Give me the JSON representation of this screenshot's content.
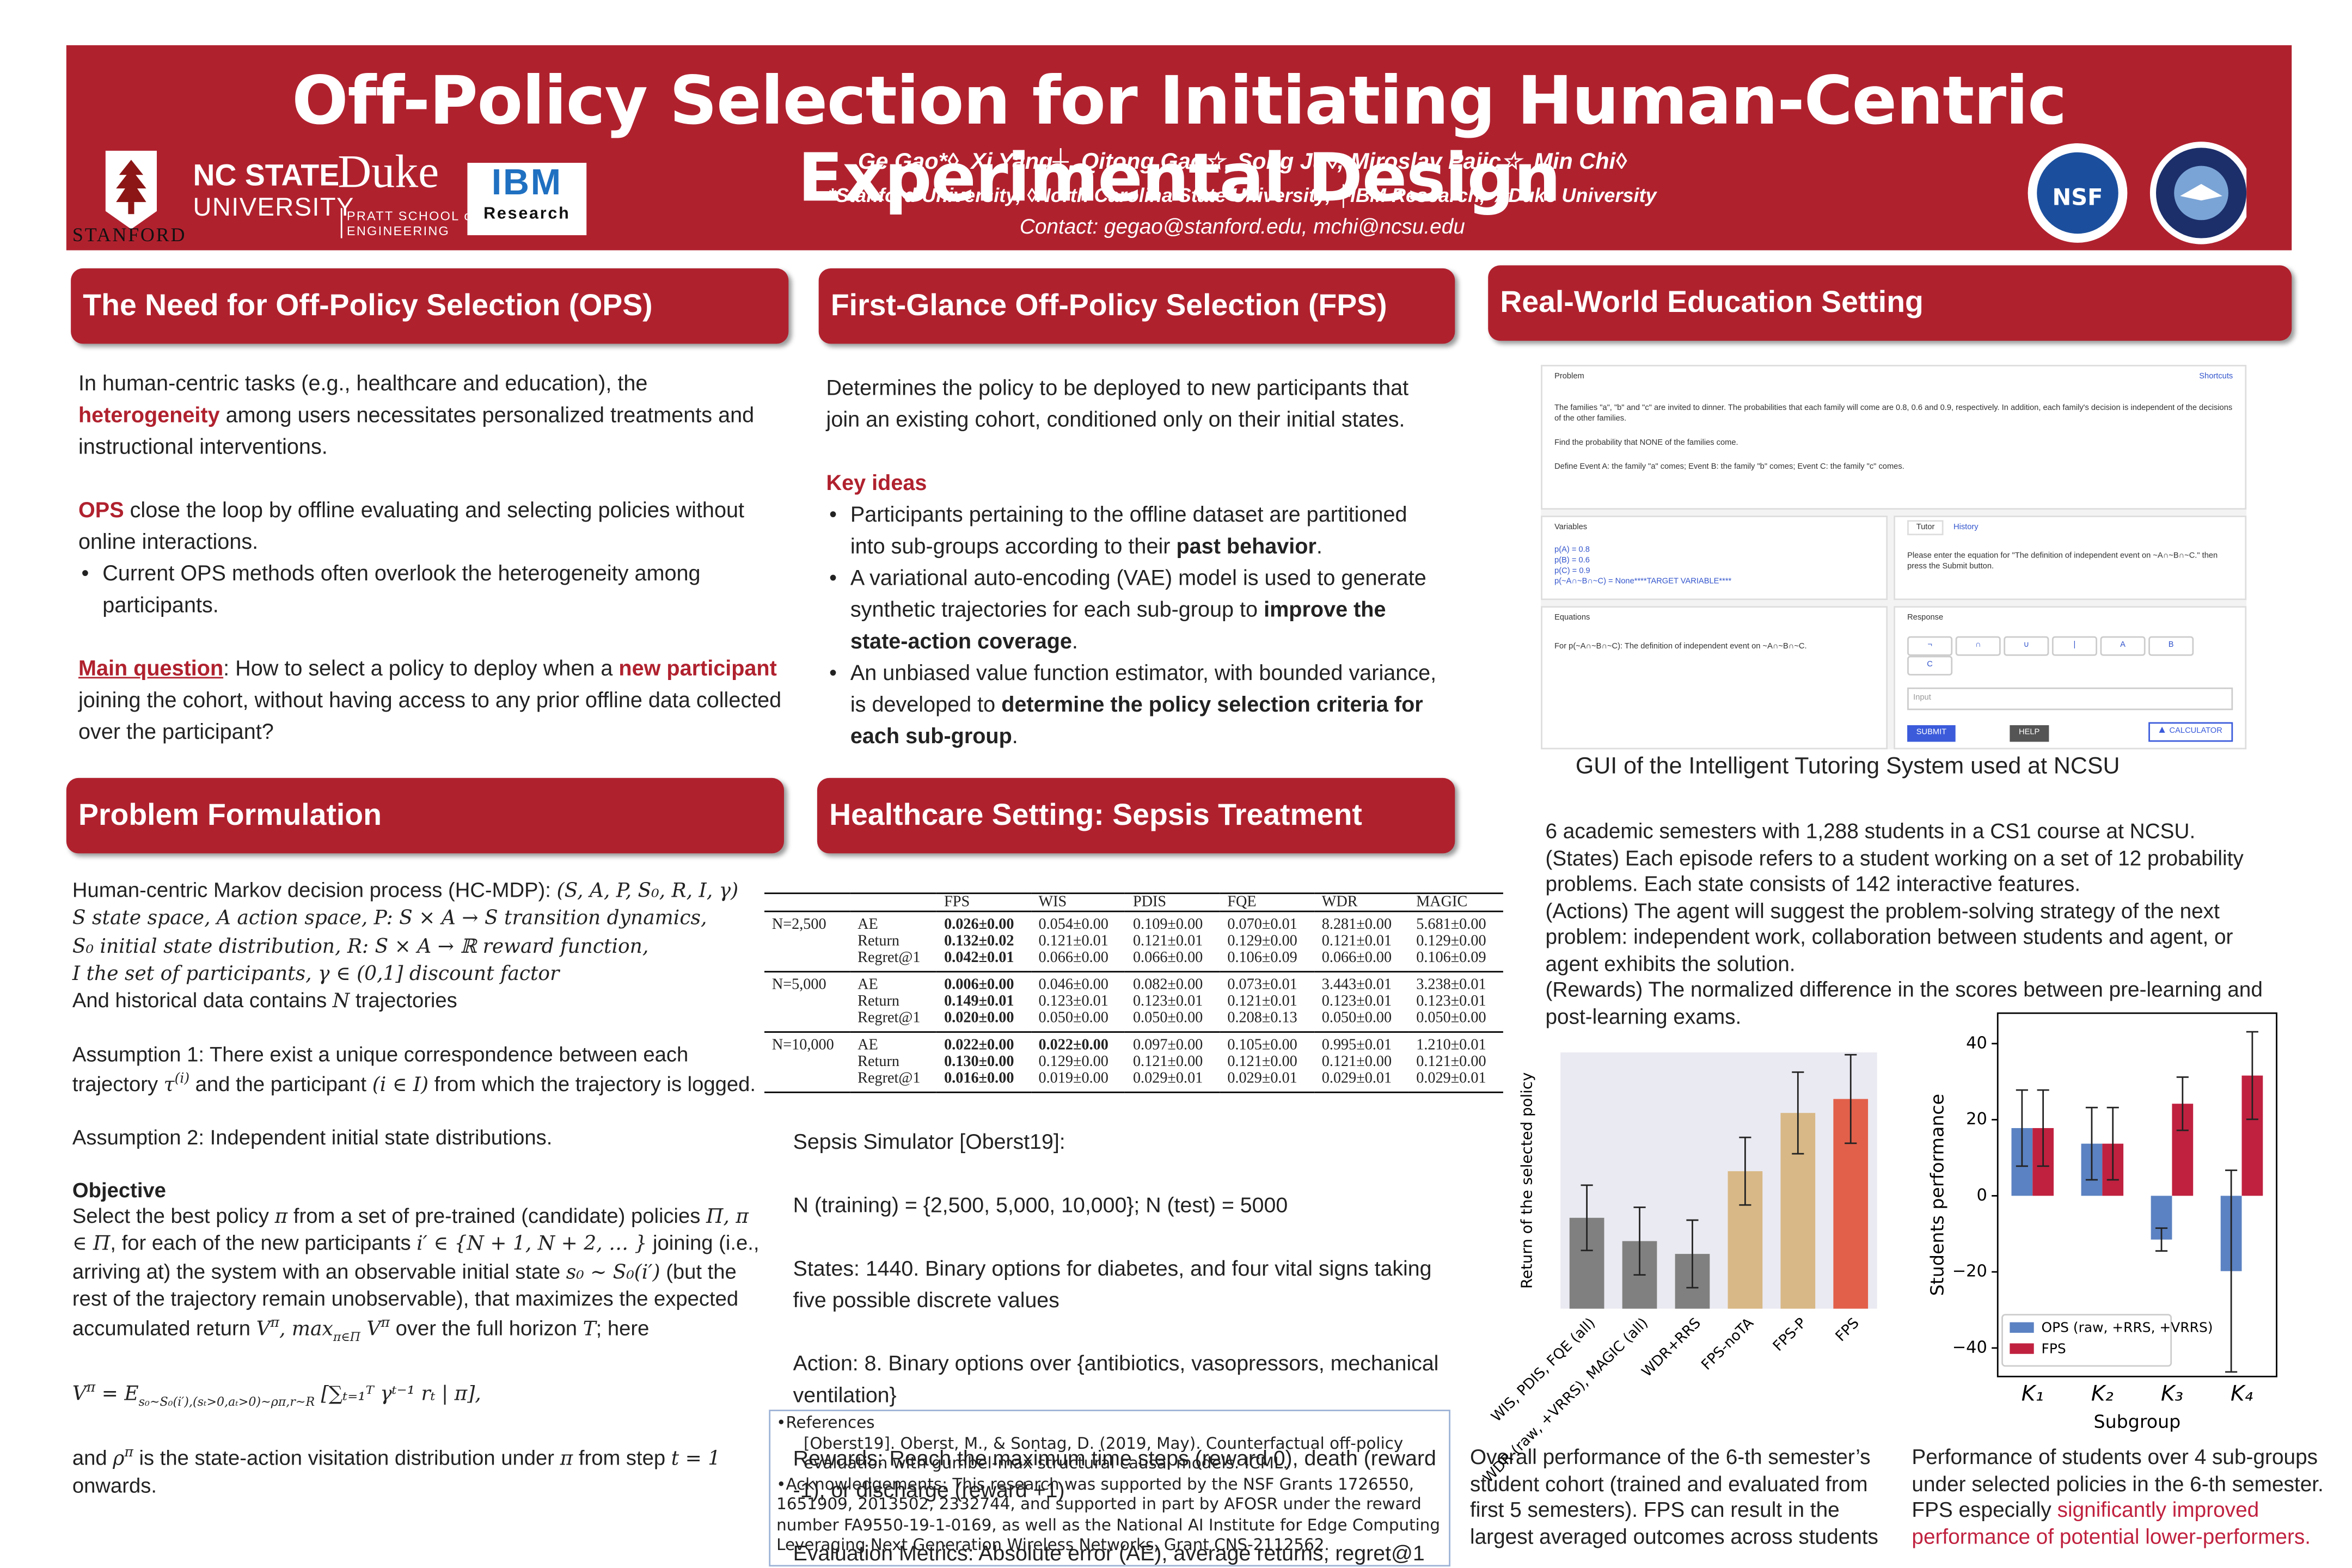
{
  "header": {
    "title": "Off-Policy Selection for Initiating Human-Centric Experimental Design",
    "authors": "Ge Gao*◊, Xi Yang┼, Qitong Gao☆, Song Ju◊, Miroslav Pajic☆, Min Chi◊",
    "affiliations": "*Stanford University, ◊North Carolina State University, ┼IBM Research, ☆Duke University",
    "contact": "Contact: gegao@stanford.edu, mchi@ncsu.edu",
    "logos": {
      "stanford": "STANFORD",
      "ncstate": "NC STATE",
      "ncstate_sub": "UNIVERSITY",
      "duke": "Duke",
      "duke_sub1": "PRATT SCHOOL of",
      "duke_sub2": "ENGINEERING",
      "ibm": "IBM",
      "ibm_sub": "Research",
      "nsf": "NSF"
    }
  },
  "sections": {
    "ops": "The Need for Off-Policy Selection (OPS)",
    "fps": "First-Glance Off-Policy Selection (FPS)",
    "edu": "Real-World Education Setting",
    "pf": "Problem Formulation",
    "sepsis": "Healthcare Setting: Sepsis Treatment"
  },
  "blocks": {
    "ops": [
      {
        "runs": [
          {
            "text": "In human-centric tasks (e.g., healthcare and education), the "
          },
          {
            "text": "heterogeneity",
            "style": "red-bold"
          },
          {
            "text": " among users necessitates personalized treatments and instructional interventions."
          }
        ]
      },
      {
        "runs": [
          {
            "text": "OPS",
            "style": "red-bold"
          },
          {
            "text": " close the loop by offline evaluating and selecting policies without online interactions."
          }
        ]
      },
      {
        "kind": "bullet",
        "runs": [
          {
            "text": "Current OPS methods often overlook the heterogeneity among participants."
          }
        ]
      },
      {
        "runs": [
          {
            "text": "Main question",
            "style": "red-underline"
          },
          {
            "text": ": How to select a policy to deploy when a "
          },
          {
            "text": "new participant",
            "style": "red-bold"
          },
          {
            "text": " joining the cohort, without having access to any prior offline data collected over the participant?"
          }
        ]
      }
    ],
    "fps": [
      {
        "runs": [
          {
            "text": "Determines the policy to be deployed to new participants that join an existing cohort, conditioned only on their initial states."
          }
        ]
      },
      {
        "runs": [
          {
            "text": "Key ideas",
            "style": "red-bold"
          }
        ]
      },
      {
        "kind": "bullet",
        "runs": [
          {
            "text": "Participants pertaining to the offline dataset are partitioned into sub-groups according to their "
          },
          {
            "text": "past behavior",
            "style": "bold"
          },
          {
            "text": "."
          }
        ]
      },
      {
        "kind": "bullet",
        "runs": [
          {
            "text": "A variational auto-encoding (VAE) model is used to generate synthetic trajectories for each sub-group to "
          },
          {
            "text": "improve the state-action coverage",
            "style": "bold"
          },
          {
            "text": "."
          }
        ]
      },
      {
        "kind": "bullet",
        "runs": [
          {
            "text": "An unbiased value function estimator, with bounded variance, is developed to "
          },
          {
            "text": "determine the policy selection criteria for each sub-group",
            "style": "bold"
          },
          {
            "text": "."
          }
        ]
      }
    ],
    "pf": [
      {
        "runs": [
          {
            "text": "Human-centric Markov decision process (HC-MDP): "
          },
          {
            "text": "(S, A, P, S₀, R, I, γ)\nS state space, A action space, P: S × A → S transition dynamics,\nS₀ initial state distribution, R: S × A → ℝ reward function,\nI the set of participants, γ ∈ (0,1] discount factor",
            "style": "math"
          },
          {
            "text": "\nAnd historical data contains "
          },
          {
            "text": "N",
            "style": "math"
          },
          {
            "text": " trajectories"
          }
        ]
      },
      {
        "runs": [
          {
            "text": "Assumption 1: There exist a unique correspondence between each trajectory "
          },
          {
            "text": "τ",
            "style": "math"
          },
          {
            "text": "(i)",
            "style": "math-sup"
          },
          {
            "text": " and the participant "
          },
          {
            "text": "(i ∈ I)",
            "style": "math"
          },
          {
            "text": " from which the trajectory is logged."
          }
        ]
      },
      {
        "runs": [
          {
            "text": "Assumption 2: Independent initial state distributions."
          }
        ]
      },
      {
        "runs": [
          {
            "text": "Objective",
            "style": "bold"
          },
          {
            "text": "\nSelect the best policy "
          },
          {
            "text": "π",
            "style": "math"
          },
          {
            "text": " from a set of pre-trained (candidate) policies "
          },
          {
            "text": "Π, π ∈ Π",
            "style": "math"
          },
          {
            "text": ", for each of the new participants "
          },
          {
            "text": "i′ ∈ {N + 1, N + 2, … }",
            "style": "math"
          },
          {
            "text": " joining (i.e., arriving at) the system with an observable initial state "
          },
          {
            "text": "s₀ ~ S₀(i′)",
            "style": "math"
          },
          {
            "text": " (but the rest of the trajectory remain unobservable), that maximizes the expected accumulated return "
          },
          {
            "text": "V",
            "style": "math"
          },
          {
            "text": "π",
            "style": "math-sup"
          },
          {
            "text": ", max",
            "style": "math"
          },
          {
            "text": "π∈Π",
            "style": "math-sub"
          },
          {
            "text": " V",
            "style": "math"
          },
          {
            "text": "π",
            "style": "math-sup"
          },
          {
            "text": " over the full horizon "
          },
          {
            "text": "T",
            "style": "math"
          },
          {
            "text": "; here"
          }
        ]
      },
      {
        "runs": [
          {
            "text": "V",
            "style": "math"
          },
          {
            "text": "π",
            "style": "math-sup"
          },
          {
            "text": " = E",
            "style": "math"
          },
          {
            "text": "s₀~S₀(i′),(sₜ>0,aₜ>0)~ρπ,r~R",
            "style": "math-sub"
          },
          {
            "text": " [∑ₜ₌₁ᵀ γᵗ⁻¹ rₜ | π],",
            "style": "math"
          }
        ]
      },
      {
        "runs": [
          {
            "text": "and "
          },
          {
            "text": "ρ",
            "style": "math"
          },
          {
            "text": "π",
            "style": "math-sup"
          },
          {
            "text": " is the state-action visitation distribution under "
          },
          {
            "text": "π",
            "style": "math"
          },
          {
            "text": " from step "
          },
          {
            "text": "t = 1",
            "style": "math"
          },
          {
            "text": " onwards."
          }
        ]
      }
    ],
    "sepsis": [
      {
        "runs": [
          {
            "text": "Sepsis Simulator [Oberst19]:"
          }
        ]
      },
      {
        "runs": [
          {
            "text": "N (training) = {2,500, 5,000, 10,000}; N (test) = 5000"
          }
        ]
      },
      {
        "runs": [
          {
            "text": "States: 1440. Binary options for diabetes, and four vital signs taking five possible discrete values"
          }
        ]
      },
      {
        "runs": [
          {
            "text": "Action: 8. Binary options over {antibiotics, vasopressors, mechanical ventilation}"
          }
        ]
      },
      {
        "runs": [
          {
            "text": "Rewards: Reach the maximum time steps (reward 0), death (reward -1), or discharge (reward +1)"
          }
        ]
      },
      {
        "runs": [
          {
            "text": "Evaluation Metrics: Absolute error (AE), average returns, regret@1"
          }
        ]
      }
    ],
    "edu": [
      {
        "runs": [
          {
            "text": "6 academic semesters with 1,288 students in a CS1 course at NCSU."
          }
        ]
      },
      {
        "runs": [
          {
            "text": "(States) Each episode refers to a student working on a set of 12 probability problems. Each state consists of 142 interactive features."
          }
        ]
      },
      {
        "runs": [
          {
            "text": "(Actions) The agent will suggest the problem-solving strategy of the next problem: independent work, collaboration between students and agent, or agent exhibits the solution."
          }
        ]
      },
      {
        "runs": [
          {
            "text": "(Rewards) The normalized difference in the scores between pre-learning and post-learning exams."
          }
        ]
      }
    ],
    "caption1": [
      {
        "runs": [
          {
            "text": "Overall performance of the 6-th semester’s student cohort (trained and evaluated from first 5 semesters). FPS can result in the largest averaged outcomes across students"
          }
        ]
      }
    ],
    "caption2": [
      {
        "runs": [
          {
            "text": "Performance of students over 4 sub-groups under selected policies in the 6-th semester. FPS especially "
          },
          {
            "text": "significantly improved performance of potential lower-performers.",
            "style": "red"
          }
        ]
      }
    ]
  },
  "table": {
    "columns": [
      "FPS",
      "WIS",
      "PDIS",
      "FQE",
      "WDR",
      "MAGIC"
    ],
    "groups": [
      {
        "label": "N=2,500",
        "rows": [
          {
            "metric": "AE",
            "values": [
              "0.026±0.00",
              "0.054±0.00",
              "0.109±0.00",
              "0.070±0.01",
              "8.281±0.00",
              "5.681±0.00"
            ],
            "bold": [
              0
            ]
          },
          {
            "metric": "Return",
            "values": [
              "0.132±0.02",
              "0.121±0.01",
              "0.121±0.01",
              "0.129±0.00",
              "0.121±0.01",
              "0.129±0.00"
            ],
            "bold": [
              0
            ]
          },
          {
            "metric": "Regret@1",
            "values": [
              "0.042±0.01",
              "0.066±0.00",
              "0.066±0.00",
              "0.106±0.09",
              "0.066±0.00",
              "0.106±0.09"
            ],
            "bold": [
              0
            ]
          }
        ]
      },
      {
        "label": "N=5,000",
        "rows": [
          {
            "metric": "AE",
            "values": [
              "0.006±0.00",
              "0.046±0.00",
              "0.082±0.00",
              "0.073±0.01",
              "3.443±0.01",
              "3.238±0.01"
            ],
            "bold": [
              0
            ]
          },
          {
            "metric": "Return",
            "values": [
              "0.149±0.01",
              "0.123±0.01",
              "0.123±0.01",
              "0.121±0.01",
              "0.123±0.01",
              "0.123±0.01"
            ],
            "bold": [
              0
            ]
          },
          {
            "metric": "Regret@1",
            "values": [
              "0.020±0.00",
              "0.050±0.00",
              "0.050±0.00",
              "0.208±0.13",
              "0.050±0.00",
              "0.050±0.00"
            ],
            "bold": [
              0
            ]
          }
        ]
      },
      {
        "label": "N=10,000",
        "rows": [
          {
            "metric": "AE",
            "values": [
              "0.022±0.00",
              "0.022±0.00",
              "0.097±0.00",
              "0.105±0.00",
              "0.995±0.01",
              "1.210±0.01"
            ],
            "bold": [
              0,
              1
            ]
          },
          {
            "metric": "Return",
            "values": [
              "0.130±0.00",
              "0.129±0.00",
              "0.121±0.00",
              "0.121±0.00",
              "0.121±0.00",
              "0.121±0.00"
            ],
            "bold": [
              0
            ]
          },
          {
            "metric": "Regret@1",
            "values": [
              "0.016±0.00",
              "0.019±0.00",
              "0.029±0.01",
              "0.029±0.01",
              "0.029±0.01",
              "0.029±0.01"
            ],
            "bold": [
              0
            ]
          }
        ]
      }
    ]
  },
  "references": {
    "heading": "References",
    "items": [
      "[Oberst19]. Oberst, M., & Sontag, D. (2019, May). Counterfactual off-policy evaluation with gumbel-max structural causal models. ICML."
    ],
    "acknowledgements": "Acknowledgements: This research was supported by the NSF Grants 1726550, 1651909, 2013502, 2332744, and supported in part by AFOSR under the reward number FA9550-19-1-0169, as well as the National AI Institute for Edge Computing Leveraging Next Generation Wireless Networks, Grant CNS-2112562."
  },
  "gui": {
    "caption": "GUI of the Intelligent Tutoring System used at NCSU",
    "problem_label": "Problem",
    "shortcuts": "Shortcuts",
    "problem_text": [
      "The families \"a\", \"b\" and \"c\" are invited to dinner. The probabilities that each family will come are 0.8, 0.6 and 0.9, respectively. In addition, each family's decision is independent of the decisions of the other families.",
      "Find the probability that NONE of the families come.",
      "Define Event A: the family \"a\" comes; Event B: the family \"b\" comes; Event C: the family \"c\" comes."
    ],
    "variables_label": "Variables",
    "variables": [
      "p(A) = 0.8",
      "p(B) = 0.6",
      "p(C) = 0.9",
      "p(~A∩~B∩~C) = None****TARGET VARIABLE****"
    ],
    "tabs": [
      "Tutor",
      "History"
    ],
    "tutor_text": "Please enter the equation for \"The definition of independent event on ~A∩~B∩~C.\" then press the Submit button.",
    "equations_label": "Equations",
    "equation_text": "For p(~A∩~B∩~C): The definition of independent event on ~A∩~B∩~C.",
    "response_label": "Response",
    "buttons": [
      "¬",
      "∩",
      "∪",
      "|",
      "A",
      "B",
      "C"
    ],
    "input": "Input",
    "submit": "SUBMIT",
    "help": "HELP",
    "calculator": "CALCULATOR"
  },
  "chart_data": [
    {
      "type": "bar",
      "y_label": "Return of the selected policy",
      "categories": [
        "WIS, PDIS, FQE (all)",
        "WDR (raw, +VRRS), MAGIC (all)",
        "WDR+RRS",
        "FPS-noTA",
        "FPS-P",
        "FPS"
      ],
      "values": [
        7.8,
        5.8,
        4.7,
        11.8,
        16.8,
        18
      ],
      "errors": [
        2.8,
        2.9,
        2.9,
        2.9,
        3.5,
        3.8
      ],
      "colors": [
        "#808080",
        "#808080",
        "#808080",
        "#d8b886",
        "#d8b886",
        "#e2604a"
      ],
      "ylim": [
        0,
        22
      ],
      "background": "#eaeaf2"
    },
    {
      "type": "grouped-bar",
      "x_label": "Subgroup",
      "y_label": "Students performance",
      "categories": [
        "K₁",
        "K₂",
        "K₃",
        "K₄"
      ],
      "series": [
        {
          "name": "OPS (raw, +RRS, +VRRS)",
          "color": "#5b82c2",
          "values": [
            17.8,
            13.7,
            -11.5,
            -19.8
          ],
          "errors": [
            10,
            9.5,
            3,
            26.5
          ]
        },
        {
          "name": "FPS",
          "color": "#c0213f",
          "values": [
            17.8,
            13.7,
            24.2,
            31.6
          ],
          "errors": [
            10,
            9.5,
            7,
            11.5
          ]
        }
      ],
      "ylim": [
        -47.5,
        48
      ],
      "yticks": [
        {
          "value": -40,
          "label": "−40"
        },
        {
          "value": -20,
          "label": "−20"
        },
        0,
        20,
        40
      ],
      "legend": "lower left"
    }
  ]
}
